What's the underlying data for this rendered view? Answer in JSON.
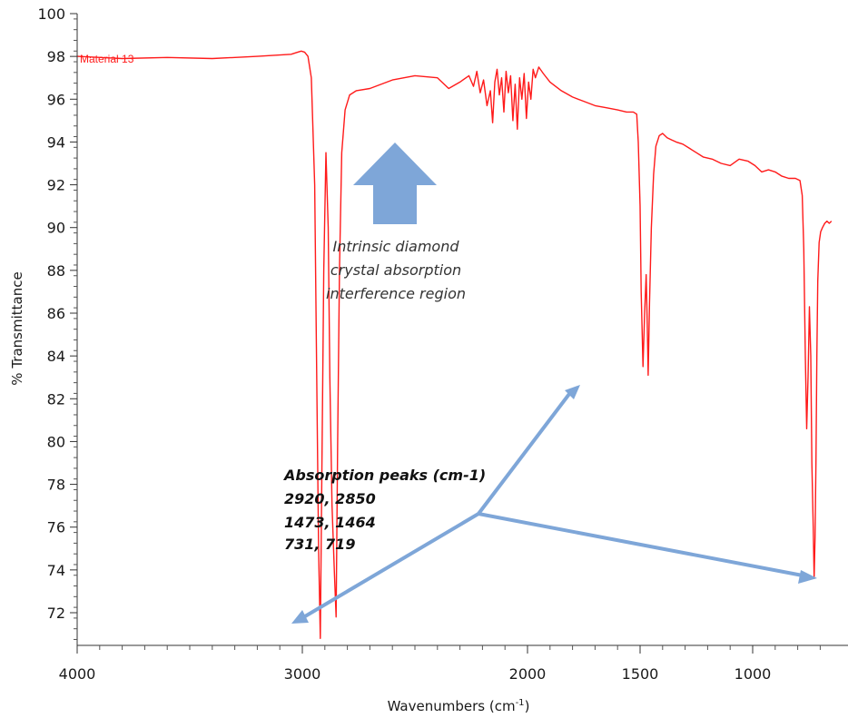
{
  "chart_data": {
    "type": "line",
    "title": "",
    "xlabel": "Wavenumbers (cm-1)",
    "xlabel_parts": {
      "text": "Wavenumbers (cm",
      "superscript": "-1",
      "suffix": ")"
    },
    "ylabel": "% Transmittance",
    "xlim": [
      4000,
      650
    ],
    "x_reversed": true,
    "ylim": [
      70.5,
      100
    ],
    "x_ticks": [
      4000,
      3000,
      2000,
      1500,
      1000
    ],
    "x_tick_labels": [
      "4000",
      "3000",
      "2000",
      "1500",
      "1000"
    ],
    "y_ticks": [
      72,
      74,
      76,
      78,
      80,
      82,
      84,
      86,
      88,
      90,
      92,
      94,
      96,
      98,
      100
    ],
    "y_tick_labels": [
      "72",
      "74",
      "76",
      "78",
      "80",
      "82",
      "84",
      "86",
      "88",
      "90",
      "92",
      "94",
      "96",
      "98",
      "100"
    ],
    "grid": false,
    "series": [
      {
        "name": "Material 13",
        "color": "#ff1a1a",
        "x": [
          4000,
          3800,
          3600,
          3400,
          3200,
          3050,
          3020,
          3005,
          2990,
          2975,
          2960,
          2945,
          2935,
          2928,
          2920,
          2913,
          2905,
          2895,
          2885,
          2878,
          2868,
          2858,
          2850,
          2843,
          2835,
          2825,
          2810,
          2790,
          2760,
          2700,
          2600,
          2500,
          2400,
          2350,
          2300,
          2260,
          2240,
          2225,
          2210,
          2195,
          2180,
          2165,
          2155,
          2145,
          2135,
          2125,
          2115,
          2105,
          2095,
          2085,
          2075,
          2065,
          2055,
          2045,
          2035,
          2025,
          2015,
          2005,
          1995,
          1985,
          1975,
          1965,
          1950,
          1930,
          1900,
          1850,
          1800,
          1750,
          1700,
          1650,
          1600,
          1560,
          1530,
          1515,
          1508,
          1500,
          1495,
          1487,
          1480,
          1473,
          1468,
          1464,
          1458,
          1450,
          1440,
          1430,
          1415,
          1400,
          1380,
          1360,
          1340,
          1310,
          1280,
          1250,
          1220,
          1180,
          1140,
          1100,
          1060,
          1020,
          990,
          960,
          930,
          900,
          870,
          840,
          810,
          790,
          780,
          773,
          766,
          760,
          754,
          748,
          742,
          737,
          731,
          727,
          723,
          719,
          715,
          711,
          705,
          698,
          690,
          680,
          670,
          660,
          650
        ],
        "y": [
          98.0,
          97.9,
          97.95,
          97.9,
          98.0,
          98.1,
          98.2,
          98.25,
          98.2,
          98.0,
          97.0,
          92.0,
          82.0,
          75.0,
          70.8,
          79.0,
          88.0,
          93.5,
          90.0,
          83.0,
          77.0,
          74.0,
          71.8,
          80.0,
          88.0,
          93.5,
          95.5,
          96.2,
          96.4,
          96.5,
          96.9,
          97.1,
          97.0,
          96.5,
          96.8,
          97.1,
          96.6,
          97.3,
          96.3,
          96.9,
          95.7,
          96.4,
          94.9,
          96.8,
          97.4,
          96.2,
          97.0,
          95.4,
          97.3,
          96.3,
          97.1,
          95.0,
          96.7,
          94.6,
          97.0,
          96.0,
          97.2,
          95.1,
          96.8,
          96.0,
          97.4,
          97.0,
          97.5,
          97.2,
          96.8,
          96.4,
          96.1,
          95.9,
          95.7,
          95.6,
          95.5,
          95.4,
          95.4,
          95.3,
          94.0,
          91.0,
          87.0,
          83.5,
          86.0,
          87.8,
          85.5,
          83.1,
          86.5,
          90.0,
          92.5,
          93.8,
          94.3,
          94.4,
          94.2,
          94.1,
          94.0,
          93.9,
          93.7,
          93.5,
          93.3,
          93.2,
          93.0,
          92.9,
          93.2,
          93.1,
          92.9,
          92.6,
          92.7,
          92.6,
          92.4,
          92.3,
          92.3,
          92.2,
          91.5,
          89.0,
          84.0,
          80.6,
          83.0,
          86.3,
          84.0,
          79.0,
          76.0,
          73.6,
          75.5,
          79.0,
          84.0,
          87.5,
          89.3,
          89.8,
          90.0,
          90.2,
          90.3,
          90.2,
          90.3
        ]
      }
    ],
    "annotations": {
      "region_lines": [
        "Intrinsic diamond",
        "crystal absorption",
        "interference region"
      ],
      "peaks_title": "Absorption peaks (cm-1)",
      "peaks_lines": [
        "2920, 2850",
        "1473, 1464",
        "731, 719"
      ],
      "arrow_color": "#7ea6d8"
    }
  }
}
